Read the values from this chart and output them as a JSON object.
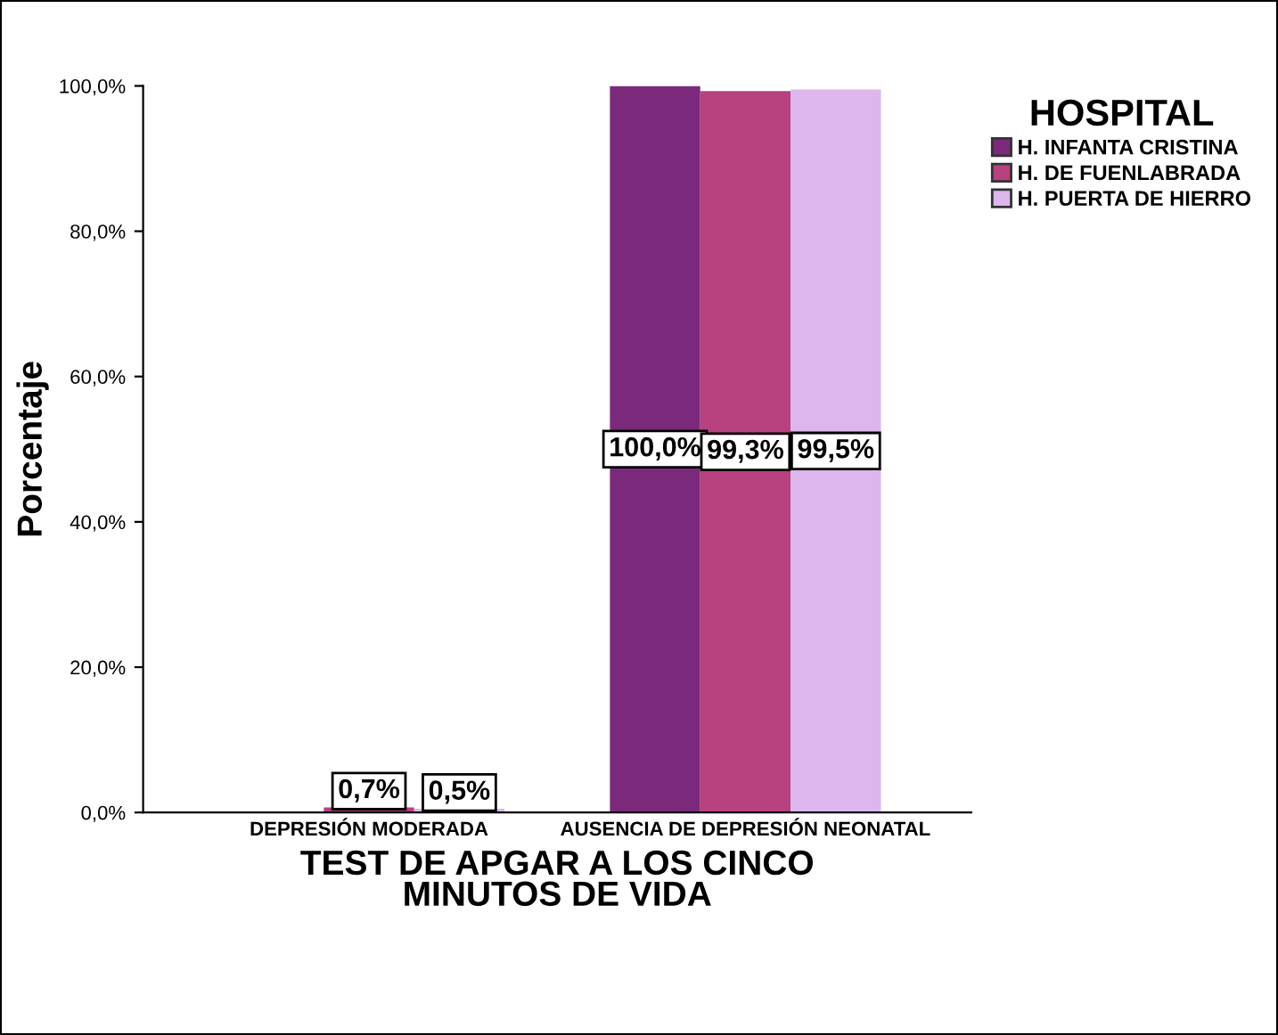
{
  "chart_data": {
    "type": "bar",
    "xlabel": "TEST DE APGAR A LOS CINCO\nMINUTOS DE VIDA",
    "ylabel": "Porcentaje",
    "legend_title": "HOSPITAL",
    "categories": [
      "DEPRESIÓN MODERADA",
      "AUSENCIA DE DEPRESIÓN NEONATAL"
    ],
    "series": [
      {
        "name": "H. INFANTA CRISTINA",
        "color": "#7b2a7b",
        "values": [
          null,
          100.0
        ],
        "value_labels": [
          null,
          "100,0%"
        ]
      },
      {
        "name": "H. DE FUENLABRADA",
        "color": "#b8417f",
        "values": [
          0.7,
          99.3
        ],
        "value_labels": [
          "0,7%",
          "99,3%"
        ]
      },
      {
        "name": "H. PUERTA DE HIERRO",
        "color": "#dcb6ec",
        "values": [
          0.5,
          99.5
        ],
        "value_labels": [
          "0,5%",
          "99,5%"
        ]
      }
    ],
    "ylim": [
      0,
      100
    ],
    "yticks": [
      {
        "value": 0,
        "label": "0,0%"
      },
      {
        "value": 20,
        "label": "20,0%"
      },
      {
        "value": 40,
        "label": "40,0%"
      },
      {
        "value": 60,
        "label": "60,0%"
      },
      {
        "value": 80,
        "label": "80,0%"
      },
      {
        "value": 100,
        "label": "100,0%"
      }
    ],
    "grid": false,
    "legend": "right"
  }
}
